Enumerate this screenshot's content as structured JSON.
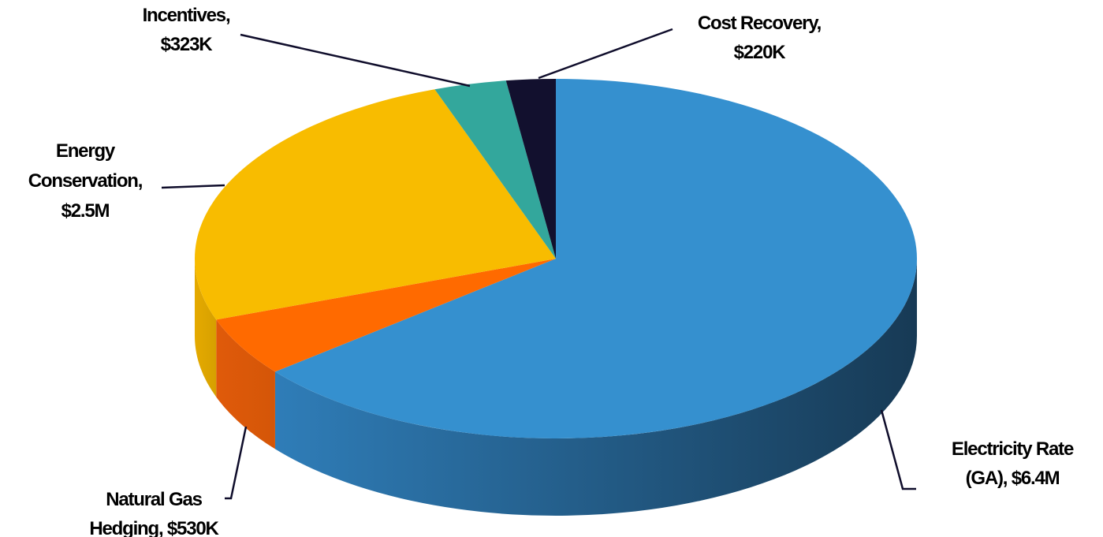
{
  "chart_data": {
    "type": "pie",
    "style": "3d",
    "title": "",
    "slices": [
      {
        "label": "Electricity Rate (GA)",
        "value_text": "$6.4M",
        "value": 6400000,
        "color": "#3590cf",
        "side_dark": "#173a55",
        "side_light": "#2f7db8"
      },
      {
        "label": "Natural Gas Hedging",
        "value_text": "$530K",
        "value": 530000,
        "color": "#ff6a00",
        "side_dark": "#d45608",
        "side_light": "#e05a0a"
      },
      {
        "label": "Energy Conservation",
        "value_text": "$2.5M",
        "value": 2500000,
        "color": "#f8bc00",
        "side_dark": "#d6a000",
        "side_light": "#e5aa00"
      },
      {
        "label": "Incentives",
        "value_text": "$323K",
        "value": 323000,
        "color": "#33a79c",
        "side_dark": "#237a72",
        "side_light": "#2b9187"
      },
      {
        "label": "Cost Recovery",
        "value_text": "$220K",
        "value": 220000,
        "color": "#12102e",
        "side_dark": "#0a0820",
        "side_light": "#12102e"
      }
    ],
    "data_labels": [
      {
        "lines": [
          "Electricity Rate",
          "(GA), $6.4M"
        ]
      },
      {
        "lines": [
          "Natural Gas",
          "Hedging, $530K"
        ]
      },
      {
        "lines": [
          "Energy",
          "Conservation,",
          "$2.5M"
        ]
      },
      {
        "lines": [
          "Incentives,",
          "$323K"
        ]
      },
      {
        "lines": [
          "Cost Recovery,",
          "$220K"
        ]
      }
    ],
    "legend": "none",
    "leader_lines": true
  }
}
